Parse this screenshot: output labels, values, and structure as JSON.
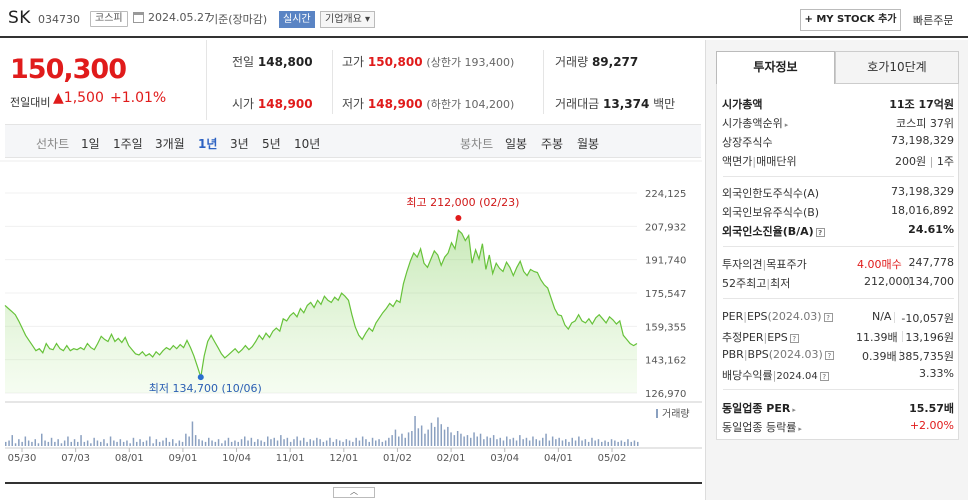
{
  "header": {
    "name": "SK",
    "code": "034730",
    "market": "코스피",
    "date": "2024.05.27",
    "basis": "기준(장마감)",
    "realtime": "실시간",
    "company_overview": "기업개요",
    "my_stock": "MY STOCK 추가",
    "quick_order": "빠른주문"
  },
  "price": {
    "current": "150,300",
    "change_label": "전일대비",
    "change": "1,500",
    "change_pct": "+1.01%",
    "direction_symbol": "▲"
  },
  "quote": {
    "prev_close_label": "전일",
    "prev_close": "148,800",
    "high_label": "고가",
    "high": "150,800",
    "upper_limit": "(상한가 193,400)",
    "volume_label": "거래량",
    "volume": "89,277",
    "open_label": "시가",
    "open": "148,900",
    "low_label": "저가",
    "low": "148,900",
    "lower_limit": "(하한가 104,200)",
    "amount_label": "거래대금",
    "amount": "13,374",
    "amount_unit": "백만"
  },
  "period_bar": {
    "line_title": "선차트",
    "periods": [
      "1일",
      "1주일",
      "3개월",
      "1년",
      "3년",
      "5년",
      "10년"
    ],
    "active": "1년",
    "candle_title": "봉차트",
    "candles": [
      "일봉",
      "주봉",
      "월봉"
    ]
  },
  "chart_data": {
    "type": "area",
    "x_tick_labels": [
      "05/30",
      "07/03",
      "08/01",
      "09/01",
      "10/04",
      "11/01",
      "12/01",
      "01/02",
      "02/01",
      "03/04",
      "04/01",
      "05/02"
    ],
    "y_tick_labels": [
      "224,125",
      "207,932",
      "191,740",
      "175,547",
      "159,355",
      "143,162",
      "126,970"
    ],
    "ylim": [
      126970,
      224125
    ],
    "volume_legend": "거래량",
    "high_annotation": "최고 212,000 (02/23)",
    "low_annotation": "최저 134,700 (10/06)",
    "high_value": 212000,
    "low_value": 134700,
    "line_color": "#67c23a",
    "fill_color": "#d9f5c8",
    "series": [
      {
        "values": [
          169500,
          168000,
          166500,
          165000,
          162000,
          158500,
          155000,
          152500,
          150000,
          147500,
          148500,
          146500,
          151000,
          148500,
          148000,
          151000,
          148500,
          147500,
          150000,
          147500,
          148500,
          148000,
          149000,
          148000,
          151000,
          149000,
          148000,
          151000,
          154500,
          153000,
          152000,
          155500,
          152000,
          153500,
          151500,
          154000,
          150000,
          148000,
          146000,
          145500,
          147000,
          145000,
          146000,
          144500,
          147000,
          145500,
          147500,
          149000,
          148000,
          150000,
          148500,
          150500,
          149000,
          152500,
          149000,
          145000,
          140000,
          134700,
          145000,
          152000,
          155000,
          152000,
          149000,
          146000,
          144000,
          145500,
          147000,
          148500,
          146500,
          148000,
          150000,
          148000,
          149500,
          152000,
          155000,
          153000,
          156000,
          154000,
          157000,
          158500,
          157000,
          163000,
          162000,
          164500,
          166000,
          164000,
          168000,
          166000,
          169500,
          171000,
          168500,
          172000,
          170000,
          174000,
          172000,
          171000,
          173500,
          172000,
          175500,
          174000,
          172000,
          165000,
          159000,
          155000,
          153000,
          156000,
          158500,
          157000,
          161000,
          163500,
          166000,
          168000,
          170500,
          169000,
          172000,
          171000,
          180000,
          186000,
          191000,
          195000,
          193000,
          197000,
          190000,
          188000,
          192000,
          196000,
          194000,
          189000,
          193000,
          195000,
          200000,
          197000,
          206000,
          204500,
          201000,
          203500,
          190000,
          196500,
          192000,
          199500,
          187000,
          194000,
          185000,
          190000,
          187500,
          186000,
          190500,
          188000,
          184000,
          188000,
          191000,
          186000,
          184000,
          187000,
          186000,
          185500,
          182000,
          179500,
          178000,
          173000,
          168000,
          165000,
          164500,
          160000,
          158000,
          161000,
          162000,
          165000,
          162000,
          161000,
          163000,
          160500,
          163500,
          165000,
          163000,
          161000,
          164000,
          162500,
          160500,
          162000,
          155000,
          153000,
          151000,
          150000,
          151000
        ]
      }
    ],
    "volume": [
      3,
      4,
      8,
      2,
      5,
      3,
      7,
      4,
      3,
      5,
      2,
      9,
      4,
      3,
      6,
      3,
      5,
      2,
      4,
      7,
      3,
      5,
      3,
      8,
      3,
      4,
      2,
      6,
      4,
      3,
      5,
      2,
      7,
      4,
      3,
      5,
      3,
      4,
      2,
      6,
      3,
      5,
      3,
      4,
      7,
      2,
      5,
      3,
      4,
      6,
      3,
      5,
      2,
      4,
      3,
      9,
      7,
      18,
      8,
      5,
      4,
      3,
      6,
      4,
      3,
      5,
      2,
      4,
      6,
      3,
      4,
      3,
      5,
      7,
      4,
      6,
      3,
      5,
      4,
      3,
      7,
      5,
      6,
      4,
      8,
      5,
      6,
      3,
      5,
      7,
      4,
      6,
      3,
      5,
      4,
      6,
      5,
      3,
      4,
      6,
      3,
      5,
      4,
      3,
      5,
      4,
      3,
      6,
      4,
      7,
      5,
      3,
      6,
      4,
      5,
      3,
      4,
      6,
      8,
      12,
      7,
      9,
      6,
      10,
      11,
      22,
      13,
      15,
      9,
      12,
      17,
      14,
      21,
      16,
      12,
      14,
      10,
      8,
      11,
      9,
      7,
      8,
      6,
      10,
      7,
      9,
      5,
      7,
      6,
      8,
      5,
      6,
      4,
      7,
      5,
      6,
      4,
      8,
      5,
      6,
      4,
      7,
      5,
      4,
      6,
      9,
      4,
      7,
      5,
      6,
      4,
      5,
      3,
      6,
      4,
      7,
      4,
      5,
      3,
      6,
      4,
      5,
      3,
      4,
      3,
      5,
      4,
      3,
      4,
      3,
      5,
      3,
      4,
      3
    ]
  },
  "right_panel": {
    "tabs": [
      "투자정보",
      "호가10단계"
    ],
    "market_cap_label": "시가총액",
    "market_cap": "11조 17억원",
    "market_cap_rank_label": "시가총액순위",
    "market_cap_rank": "코스피 37위",
    "listed_shares_label": "상장주식수",
    "listed_shares": "73,198,329",
    "face_value_label": "액면가",
    "trade_unit_label": "매매단위",
    "face_value": "200원",
    "trade_unit": "1주",
    "foreign_limit_label": "외국인한도주식수(A)",
    "foreign_limit": "73,198,329",
    "foreign_hold_label": "외국인보유주식수(B)",
    "foreign_hold": "18,016,892",
    "foreign_ratio_label": "외국인소진율(B/A)",
    "foreign_ratio": "24.61%",
    "opinion_label": "투자의견",
    "target_label": "목표주가",
    "opinion": "4.00매수",
    "target": "247,778",
    "w52_high_label": "52주최고",
    "w52_low_label": "최저",
    "w52_high": "212,000",
    "w52_low": "134,700",
    "per_label": "PER",
    "eps_label": "EPS",
    "eps_period": "(2024.03)",
    "per": "N/A",
    "eps": "-10,057원",
    "est_per_label": "추정PER",
    "est_eps_label": "EPS",
    "est_per": "11.39배",
    "est_eps": "13,196원",
    "pbr_label": "PBR",
    "bps_label": "BPS",
    "bps_period": "(2024.03)",
    "pbr": "0.39배",
    "bps": "385,735원",
    "dividend_label": "배당수익률",
    "dividend_period": "2024.04",
    "dividend": "3.33%",
    "sector_per_label": "동일업종 PER",
    "sector_per": "15.57배",
    "sector_change_label": "동일업종 등락률",
    "sector_change": "+2.00%"
  }
}
